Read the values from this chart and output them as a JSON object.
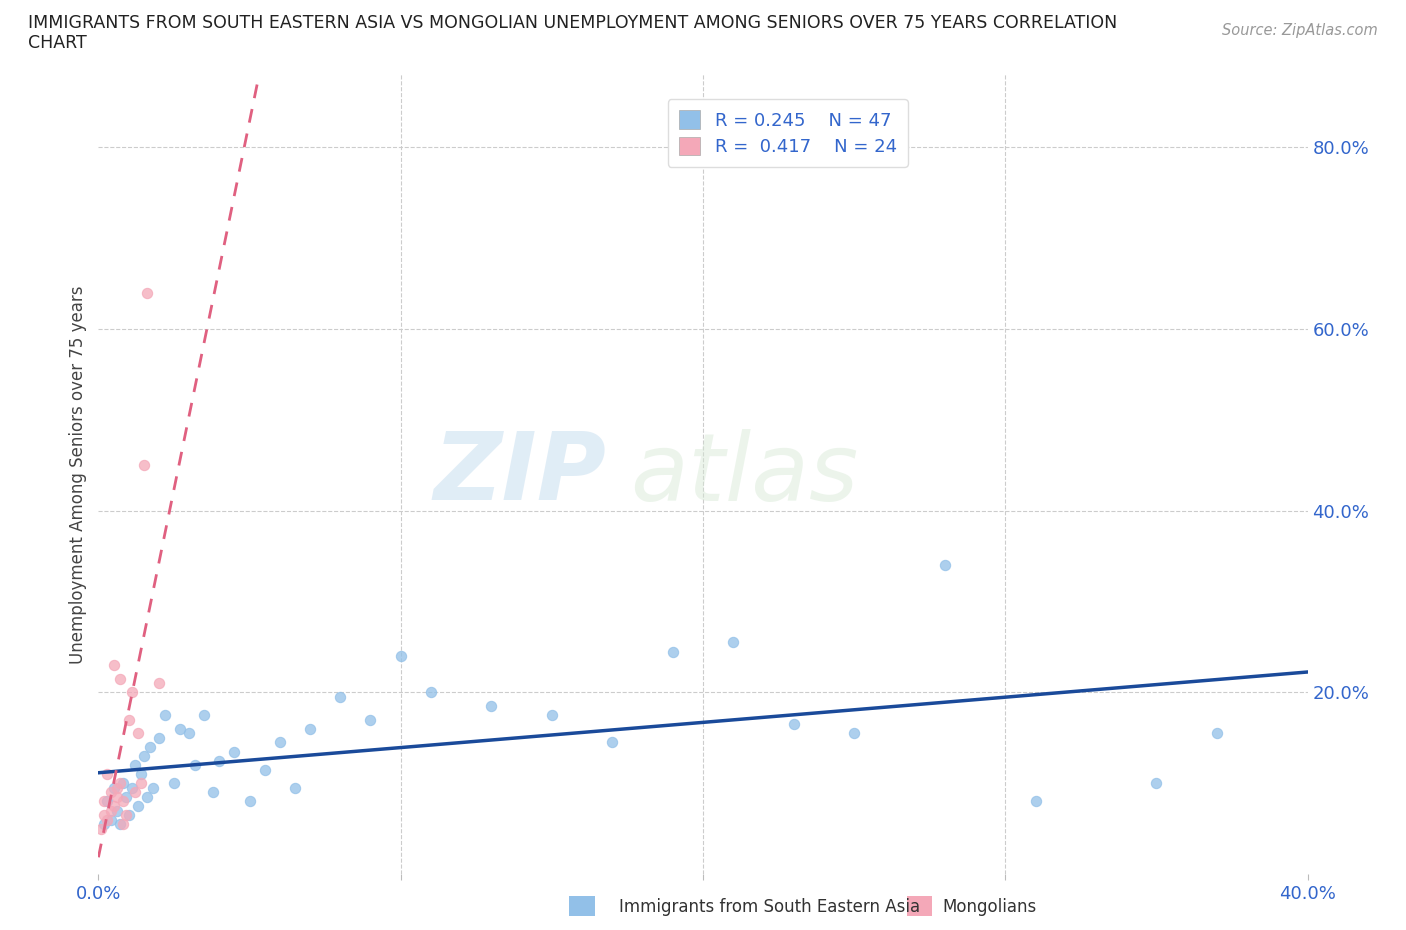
{
  "title_line1": "IMMIGRANTS FROM SOUTH EASTERN ASIA VS MONGOLIAN UNEMPLOYMENT AMONG SENIORS OVER 75 YEARS CORRELATION",
  "title_line2": "CHART",
  "source_text": "Source: ZipAtlas.com",
  "ylabel": "Unemployment Among Seniors over 75 years",
  "xlim": [
    0.0,
    0.4
  ],
  "ylim": [
    0.0,
    0.88
  ],
  "xtick_vals": [
    0.0,
    0.1,
    0.2,
    0.3,
    0.4
  ],
  "xticklabels": [
    "0.0%",
    "",
    "",
    "",
    "40.0%"
  ],
  "yticks_right": [
    0.2,
    0.4,
    0.6,
    0.8
  ],
  "ytick_right_labels": [
    "20.0%",
    "40.0%",
    "60.0%",
    "80.0%"
  ],
  "R_blue": 0.245,
  "N_blue": 47,
  "R_pink": 0.417,
  "N_pink": 24,
  "blue_color": "#92c0e8",
  "pink_color": "#f4a8b8",
  "trend_blue_color": "#1a4a9a",
  "trend_pink_color": "#e06080",
  "legend_text_color": "#3366cc",
  "background_color": "#ffffff",
  "watermark_zip": "ZIP",
  "watermark_atlas": "atlas",
  "blue_scatter_x": [
    0.002,
    0.003,
    0.004,
    0.005,
    0.006,
    0.007,
    0.008,
    0.009,
    0.01,
    0.011,
    0.012,
    0.013,
    0.014,
    0.015,
    0.016,
    0.017,
    0.018,
    0.02,
    0.022,
    0.025,
    0.027,
    0.03,
    0.032,
    0.035,
    0.038,
    0.04,
    0.045,
    0.05,
    0.055,
    0.06,
    0.065,
    0.07,
    0.08,
    0.09,
    0.1,
    0.11,
    0.13,
    0.15,
    0.17,
    0.19,
    0.21,
    0.23,
    0.25,
    0.28,
    0.31,
    0.35,
    0.37
  ],
  "blue_scatter_y": [
    0.055,
    0.08,
    0.06,
    0.095,
    0.07,
    0.055,
    0.1,
    0.085,
    0.065,
    0.095,
    0.12,
    0.075,
    0.11,
    0.13,
    0.085,
    0.14,
    0.095,
    0.15,
    0.175,
    0.1,
    0.16,
    0.155,
    0.12,
    0.175,
    0.09,
    0.125,
    0.135,
    0.08,
    0.115,
    0.145,
    0.095,
    0.16,
    0.195,
    0.17,
    0.24,
    0.2,
    0.185,
    0.175,
    0.145,
    0.245,
    0.255,
    0.165,
    0.155,
    0.34,
    0.08,
    0.1,
    0.155
  ],
  "pink_scatter_x": [
    0.001,
    0.002,
    0.002,
    0.003,
    0.003,
    0.004,
    0.004,
    0.005,
    0.005,
    0.006,
    0.006,
    0.007,
    0.007,
    0.008,
    0.008,
    0.009,
    0.01,
    0.011,
    0.012,
    0.013,
    0.014,
    0.015,
    0.016,
    0.02
  ],
  "pink_scatter_y": [
    0.05,
    0.065,
    0.08,
    0.06,
    0.11,
    0.07,
    0.09,
    0.075,
    0.23,
    0.085,
    0.095,
    0.1,
    0.215,
    0.055,
    0.08,
    0.065,
    0.17,
    0.2,
    0.09,
    0.155,
    0.1,
    0.45,
    0.64,
    0.21
  ]
}
